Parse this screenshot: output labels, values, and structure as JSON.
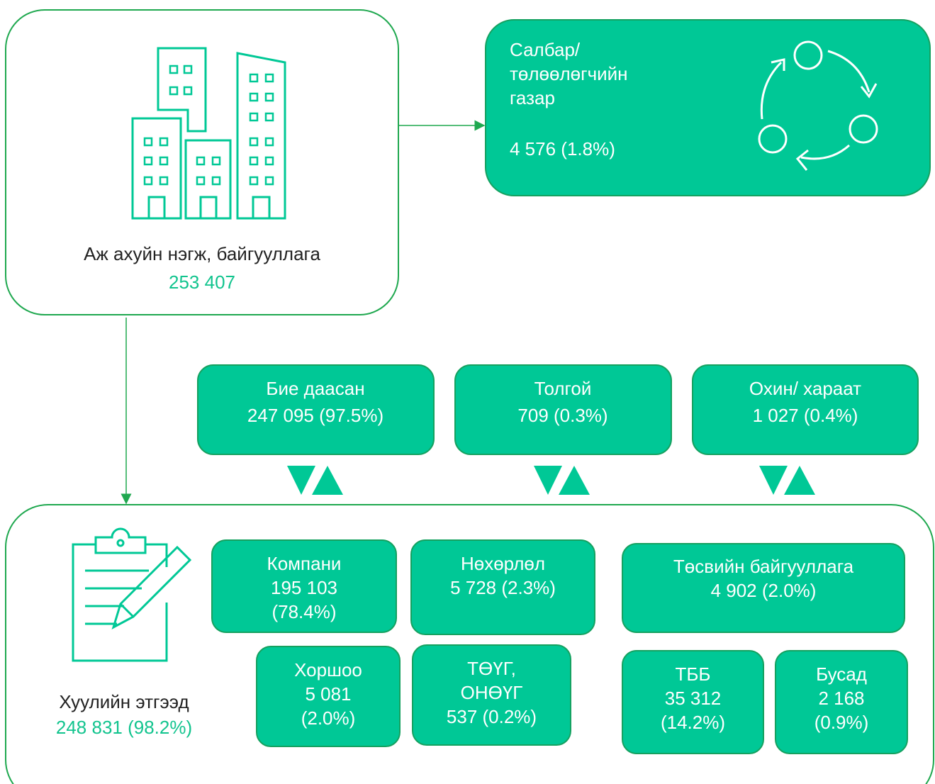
{
  "enterprise": {
    "label": "Аж ахуйн нэгж, байгууллага",
    "value": "253 407"
  },
  "branch": {
    "lines": [
      "Салбар/",
      "төлөөлөгчийн",
      "газар"
    ],
    "value": "4 576 (1.8%)"
  },
  "types": [
    {
      "label": "Бие даасан",
      "value": "247 095 (97.5%)"
    },
    {
      "label": "Толгой",
      "value": "709 (0.3%)"
    },
    {
      "label": "Охин/ хараат",
      "value": "1 027 (0.4%)"
    }
  ],
  "legal": {
    "label": "Хуулийн этгээд",
    "value": "248 831 (98.2%)"
  },
  "subtypes": [
    {
      "lines": [
        "Компани",
        "195 103",
        "(78.4%)"
      ]
    },
    {
      "lines": [
        "Нөхөрлөл",
        "5 728 (2.3%)"
      ]
    },
    {
      "lines": [
        "Төсвийн байгууллага",
        "4 902 (2.0%)"
      ]
    },
    {
      "lines": [
        "Хоршоо",
        "5 081",
        "(2.0%)"
      ]
    },
    {
      "lines": [
        "ТӨҮГ,",
        "ОНӨҮГ",
        "537 (0.2%)"
      ]
    },
    {
      "lines": [
        "ТББ",
        "35 312",
        "(14.2%)"
      ]
    },
    {
      "lines": [
        "Бусад",
        "2 168",
        "(0.9%)"
      ]
    }
  ]
}
